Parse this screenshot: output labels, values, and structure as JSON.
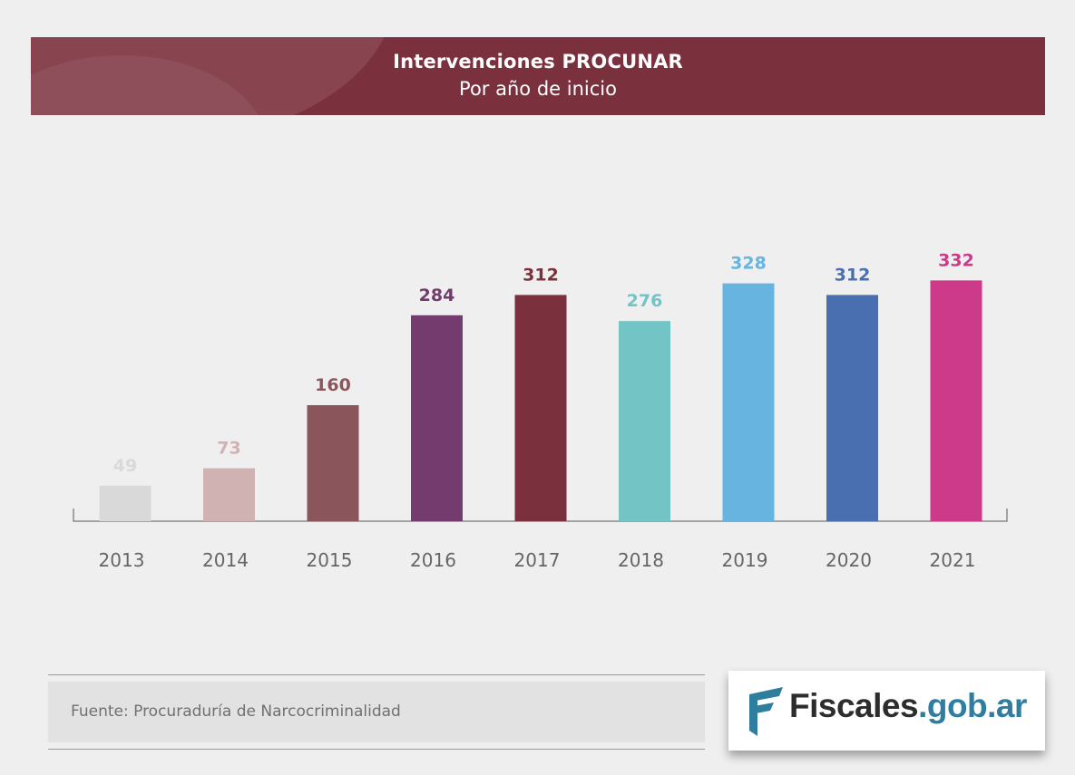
{
  "header": {
    "title": "Intervenciones PROCUNAR",
    "subtitle": "Por año de inicio"
  },
  "chart_data": {
    "type": "bar",
    "title": "Intervenciones PROCUNAR",
    "subtitle": "Por año de inicio",
    "xlabel": "",
    "ylabel": "",
    "ylim": [
      0,
      340
    ],
    "grid": false,
    "categories": [
      "2013",
      "2014",
      "2015",
      "2016",
      "2017",
      "2018",
      "2019",
      "2020",
      "2021"
    ],
    "values": [
      49,
      73,
      160,
      284,
      312,
      276,
      328,
      312,
      332
    ],
    "colors": [
      "#d9d9d9",
      "#d1b2b2",
      "#8b565b",
      "#733b6e",
      "#7b303d",
      "#73c4c4",
      "#67b4e1",
      "#4a6fb0",
      "#cd3a89"
    ],
    "label_colors": [
      "#d9d9d9",
      "#d1b2b2",
      "#8b565b",
      "#733b6e",
      "#7b303d",
      "#73c4c4",
      "#67b4e1",
      "#4a6fb0",
      "#cd3a89"
    ]
  },
  "footer": {
    "source": "Fuente: Procuraduría de Narcocriminalidad",
    "logo_part1": "Fiscales",
    "logo_part2": ".gob.ar",
    "logo_icon": "fiscales-flag-icon"
  }
}
